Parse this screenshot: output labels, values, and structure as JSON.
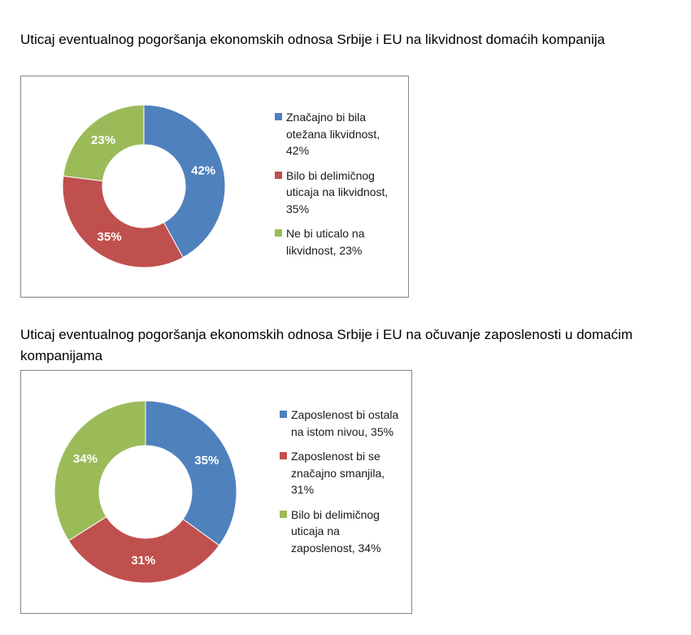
{
  "chart_data": [
    {
      "type": "pie",
      "title": "Uticaj eventualnog pogoršanja ekonomskih odnosa Srbije i EU na likvidnost domaćih kompanija",
      "categories": [
        "Značajno bi bila otežana likvidnost, 42%",
        "Bilo bi delimičnog uticaja na likvidnost, 35%",
        "Ne bi uticalo na likvidnost, 23%"
      ],
      "values": [
        42,
        35,
        23
      ],
      "labels": [
        "42%",
        "35%",
        "23%"
      ],
      "colors": [
        "#4f81bd",
        "#c0504d",
        "#9bbb59"
      ],
      "legend_position": "right",
      "style": "doughnut"
    },
    {
      "type": "pie",
      "title": "Uticaj eventualnog pogoršanja ekonomskih odnosa Srbije i EU na očuvanje zaposlenosti u domaćim kompanijama",
      "categories": [
        "Zaposlenost bi ostala na istom nivou, 35%",
        "Zaposlenost bi se značajno smanjila, 31%",
        "Bilo bi delimičnog uticaja na zaposlenost, 34%"
      ],
      "values": [
        35,
        31,
        34
      ],
      "labels": [
        "35%",
        "31%",
        "34%"
      ],
      "colors": [
        "#4f81bd",
        "#c0504d",
        "#9bbb59"
      ],
      "legend_position": "right",
      "style": "doughnut"
    }
  ]
}
